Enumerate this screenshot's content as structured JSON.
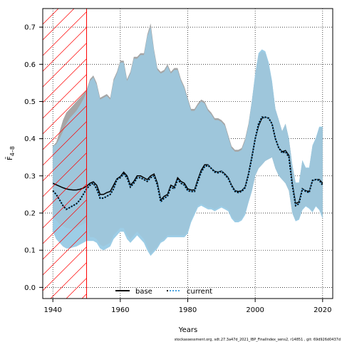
{
  "chart_data": {
    "type": "area",
    "xlabel": "Years",
    "ylabel": "F̄",
    "ylabel_sub": "4–8",
    "xlim": [
      1937,
      2023
    ],
    "ylim": [
      -0.03,
      0.75
    ],
    "xticks": [
      "1940",
      "1960",
      "1980",
      "2000",
      "2020"
    ],
    "xtick_values": [
      1940,
      1960,
      1980,
      2000,
      2020
    ],
    "yticks": [
      "0.0",
      "0.1",
      "0.2",
      "0.3",
      "0.4",
      "0.5",
      "0.6",
      "0.7"
    ],
    "ytick_values": [
      0.0,
      0.1,
      0.2,
      0.3,
      0.4,
      0.5,
      0.6,
      0.7
    ],
    "grid": true,
    "grid_style": "dotted",
    "hatched_region": {
      "x_from": 1937,
      "x_to": 1950,
      "color": "#ff0000"
    },
    "legend_position": "bottom-center",
    "footer": "stockassessment.org, sdt.27.3a47d_2021_IBP_FinalIndex_sens2, r14851 , git: 69d926d0437d",
    "series": [
      {
        "name": "base",
        "style": "solid",
        "color": "#000000",
        "band_color": "#a6a6a6",
        "x": [
          1940,
          1941,
          1942,
          1943,
          1944,
          1945,
          1946,
          1947,
          1948,
          1949,
          1950,
          1951,
          1952,
          1953,
          1954,
          1955,
          1956,
          1957,
          1958,
          1959,
          1960,
          1961,
          1962,
          1963,
          1964,
          1965,
          1966,
          1967,
          1968,
          1969,
          1970,
          1971,
          1972,
          1973,
          1974,
          1975,
          1976,
          1977,
          1978,
          1979,
          1980,
          1981,
          1982,
          1983,
          1984,
          1985,
          1986,
          1987,
          1988,
          1989,
          1990,
          1991,
          1992,
          1993,
          1994,
          1995,
          1996,
          1997,
          1998,
          1999,
          2000,
          2001,
          2002,
          2003,
          2004,
          2005,
          2006,
          2007,
          2008,
          2009,
          2010,
          2011,
          2012,
          2013,
          2014,
          2015,
          2016,
          2017,
          2018,
          2019,
          2020
        ],
        "values": [
          0.28,
          0.276,
          0.272,
          0.268,
          0.265,
          0.263,
          0.262,
          0.262,
          0.264,
          0.267,
          0.272,
          0.28,
          0.284,
          0.275,
          0.25,
          0.25,
          0.255,
          0.258,
          0.275,
          0.292,
          0.298,
          0.31,
          0.3,
          0.275,
          0.285,
          0.3,
          0.3,
          0.295,
          0.29,
          0.3,
          0.305,
          0.28,
          0.235,
          0.245,
          0.25,
          0.275,
          0.27,
          0.295,
          0.285,
          0.28,
          0.265,
          0.262,
          0.262,
          0.29,
          0.315,
          0.33,
          0.33,
          0.32,
          0.312,
          0.31,
          0.313,
          0.305,
          0.295,
          0.275,
          0.26,
          0.258,
          0.26,
          0.27,
          0.305,
          0.35,
          0.4,
          0.435,
          0.455,
          0.458,
          0.455,
          0.44,
          0.4,
          0.375,
          0.365,
          0.368,
          0.355,
          0.28,
          0.225,
          0.23,
          0.265,
          0.26,
          0.258,
          0.287,
          0.29,
          0.29,
          0.28
        ],
        "lower": [
          0.19,
          0.18,
          0.17,
          0.165,
          0.16,
          0.158,
          0.158,
          0.16,
          0.165,
          0.17,
          0.175,
          0.135,
          0.135,
          0.13,
          0.115,
          0.11,
          0.115,
          0.12,
          0.14,
          0.15,
          0.16,
          0.16,
          0.14,
          0.13,
          0.14,
          0.15,
          0.14,
          0.13,
          0.11,
          0.09,
          0.1,
          0.11,
          0.125,
          0.13,
          0.14,
          0.14,
          0.14,
          0.14,
          0.14,
          0.14,
          0.15,
          0.18,
          0.2,
          0.22,
          0.225,
          0.22,
          0.215,
          0.215,
          0.21,
          0.215,
          0.22,
          0.215,
          0.21,
          0.19,
          0.18,
          0.18,
          0.185,
          0.2,
          0.23,
          0.26,
          0.3,
          0.32,
          0.33,
          0.34,
          0.345,
          0.35,
          0.32,
          0.3,
          0.29,
          0.28,
          0.26,
          0.2,
          0.18,
          0.185,
          0.21,
          0.22,
          0.215,
          0.205,
          0.22,
          0.21,
          0.19
        ],
        "upper": [
          0.38,
          0.39,
          0.42,
          0.45,
          0.47,
          0.48,
          0.49,
          0.5,
          0.51,
          0.52,
          0.53,
          0.56,
          0.57,
          0.55,
          0.51,
          0.515,
          0.52,
          0.51,
          0.56,
          0.58,
          0.61,
          0.61,
          0.56,
          0.58,
          0.62,
          0.62,
          0.63,
          0.63,
          0.68,
          0.71,
          0.64,
          0.59,
          0.58,
          0.585,
          0.6,
          0.58,
          0.59,
          0.59,
          0.56,
          0.54,
          0.51,
          0.48,
          0.48,
          0.495,
          0.505,
          0.5,
          0.48,
          0.47,
          0.455,
          0.455,
          0.45,
          0.44,
          0.41,
          0.38,
          0.37,
          0.37,
          0.375,
          0.4,
          0.44,
          0.5,
          0.57,
          0.625,
          0.635,
          0.63,
          0.6,
          0.55,
          0.48,
          0.45,
          0.42,
          0.44,
          0.4,
          0.33,
          0.28,
          0.28,
          0.34,
          0.32,
          0.32,
          0.38,
          0.4,
          0.43,
          0.43
        ]
      },
      {
        "name": "current",
        "style": "dotted",
        "color": "#000000",
        "dot_color": "#4aa3df",
        "band_color": "#9fd6f0",
        "x": [
          1940,
          1941,
          1942,
          1943,
          1944,
          1945,
          1946,
          1947,
          1948,
          1949,
          1950,
          1951,
          1952,
          1953,
          1954,
          1955,
          1956,
          1957,
          1958,
          1959,
          1960,
          1961,
          1962,
          1963,
          1964,
          1965,
          1966,
          1967,
          1968,
          1969,
          1970,
          1971,
          1972,
          1973,
          1974,
          1975,
          1976,
          1977,
          1978,
          1979,
          1980,
          1981,
          1982,
          1983,
          1984,
          1985,
          1986,
          1987,
          1988,
          1989,
          1990,
          1991,
          1992,
          1993,
          1994,
          1995,
          1996,
          1997,
          1998,
          1999,
          2000,
          2001,
          2002,
          2003,
          2004,
          2005,
          2006,
          2007,
          2008,
          2009,
          2010,
          2011,
          2012,
          2013,
          2014,
          2015,
          2016,
          2017,
          2018,
          2019,
          2020
        ],
        "values": [
          0.26,
          0.25,
          0.235,
          0.22,
          0.21,
          0.215,
          0.22,
          0.225,
          0.235,
          0.25,
          0.265,
          0.275,
          0.28,
          0.265,
          0.24,
          0.24,
          0.245,
          0.25,
          0.265,
          0.29,
          0.295,
          0.305,
          0.295,
          0.27,
          0.28,
          0.295,
          0.295,
          0.29,
          0.285,
          0.295,
          0.3,
          0.275,
          0.23,
          0.24,
          0.245,
          0.27,
          0.265,
          0.29,
          0.28,
          0.275,
          0.26,
          0.258,
          0.258,
          0.285,
          0.31,
          0.325,
          0.328,
          0.32,
          0.31,
          0.308,
          0.312,
          0.303,
          0.293,
          0.273,
          0.258,
          0.255,
          0.258,
          0.268,
          0.303,
          0.348,
          0.4,
          0.44,
          0.458,
          0.458,
          0.455,
          0.44,
          0.4,
          0.375,
          0.362,
          0.365,
          0.35,
          0.275,
          0.22,
          0.225,
          0.265,
          0.258,
          0.255,
          0.288,
          0.29,
          0.288,
          0.275
        ],
        "lower": [
          0.15,
          0.13,
          0.12,
          0.11,
          0.105,
          0.105,
          0.108,
          0.11,
          0.115,
          0.12,
          0.125,
          0.125,
          0.125,
          0.12,
          0.105,
          0.1,
          0.105,
          0.11,
          0.13,
          0.14,
          0.15,
          0.15,
          0.13,
          0.12,
          0.13,
          0.14,
          0.13,
          0.12,
          0.1,
          0.085,
          0.095,
          0.105,
          0.12,
          0.125,
          0.135,
          0.135,
          0.135,
          0.135,
          0.135,
          0.135,
          0.145,
          0.175,
          0.195,
          0.215,
          0.22,
          0.215,
          0.21,
          0.21,
          0.205,
          0.21,
          0.215,
          0.21,
          0.205,
          0.185,
          0.175,
          0.175,
          0.18,
          0.195,
          0.228,
          0.258,
          0.3,
          0.32,
          0.33,
          0.34,
          0.345,
          0.35,
          0.32,
          0.3,
          0.29,
          0.28,
          0.26,
          0.2,
          0.178,
          0.182,
          0.208,
          0.218,
          0.212,
          0.202,
          0.218,
          0.208,
          0.185
        ],
        "upper": [
          0.38,
          0.385,
          0.4,
          0.42,
          0.44,
          0.455,
          0.465,
          0.475,
          0.49,
          0.505,
          0.525,
          0.555,
          0.565,
          0.545,
          0.505,
          0.51,
          0.515,
          0.505,
          0.555,
          0.575,
          0.605,
          0.605,
          0.555,
          0.575,
          0.615,
          0.615,
          0.625,
          0.625,
          0.675,
          0.7,
          0.635,
          0.585,
          0.575,
          0.58,
          0.595,
          0.575,
          0.585,
          0.585,
          0.555,
          0.535,
          0.505,
          0.475,
          0.475,
          0.49,
          0.5,
          0.495,
          0.475,
          0.465,
          0.45,
          0.45,
          0.445,
          0.435,
          0.405,
          0.375,
          0.365,
          0.365,
          0.37,
          0.395,
          0.435,
          0.5,
          0.575,
          0.63,
          0.64,
          0.635,
          0.605,
          0.555,
          0.48,
          0.45,
          0.42,
          0.44,
          0.4,
          0.33,
          0.282,
          0.282,
          0.342,
          0.322,
          0.322,
          0.382,
          0.402,
          0.432,
          0.432
        ]
      }
    ]
  }
}
